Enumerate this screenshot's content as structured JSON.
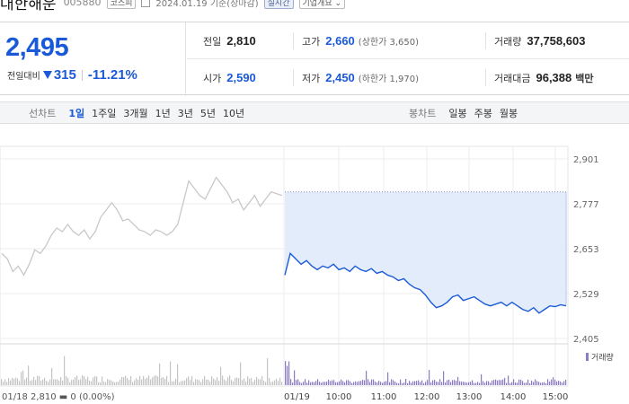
{
  "header": {
    "name": "대한해운",
    "code": "005880",
    "market_badge": "코스피",
    "timestamp": "2024.01.19 기준(장마감)",
    "live_badge": "실시간",
    "overview_button": "기업개요"
  },
  "quote": {
    "price": "2,495",
    "change_label": "전일대비",
    "change_value": "315",
    "change_direction": "down",
    "change_rate": "-11.21%",
    "prev_close_label": "전일",
    "prev_close": "2,810",
    "open_label": "시가",
    "open": "2,590",
    "high_label": "고가",
    "high": "2,660",
    "high_limit": "(상한가 3,650)",
    "low_label": "저가",
    "low": "2,450",
    "low_limit": "(하한가 1,970)",
    "volume_label": "거래량",
    "volume": "37,758,603",
    "amount_label": "거래대금",
    "amount": "96,388",
    "amount_unit": "백만"
  },
  "period_bar": {
    "line_title": "선차트",
    "line_options": [
      "1일",
      "1주일",
      "3개월",
      "1년",
      "3년",
      "5년",
      "10년"
    ],
    "active_line": "1일",
    "candle_title": "봉차트",
    "candle_options": [
      "일봉",
      "주봉",
      "월봉"
    ]
  },
  "colors": {
    "down": "#1a5ad8",
    "prev_day_line": "#c8c8c8",
    "fill": "#e3ecfa",
    "volume_today": "#8a7bc4",
    "volume_prev": "#c4c4c4"
  },
  "chart_data": {
    "type": "line",
    "y_ticks": [
      "2,901",
      "2,777",
      "2,653",
      "2,529",
      "2,405"
    ],
    "ylim": [
      2405,
      2901
    ],
    "x_ticks": [
      "01/19",
      "10:00",
      "11:00",
      "12:00",
      "13:00",
      "14:00",
      "15:00"
    ],
    "prev_day_caption": "01/18  2,810 ▬ 0 (0.00%)",
    "volume_legend": "거래량",
    "grid": true,
    "reference_line": 2810,
    "series": [
      {
        "values": [
          2640,
          2625,
          2590,
          2605,
          2580,
          2610,
          2650,
          2640,
          2660,
          2690,
          2710,
          2700,
          2720,
          2700,
          2690,
          2705,
          2680,
          2700,
          2740,
          2760,
          2780,
          2760,
          2730,
          2735,
          2720,
          2705,
          2700,
          2690,
          2705,
          2700,
          2690,
          2700,
          2720,
          2780,
          2840,
          2820,
          2800,
          2790,
          2820,
          2850,
          2830,
          2810,
          2780,
          2790,
          2760,
          2780,
          2800,
          2770,
          2790,
          2810,
          2805,
          2800
        ]
      },
      {
        "values": [
          2580,
          2640,
          2625,
          2610,
          2620,
          2605,
          2595,
          2605,
          2600,
          2610,
          2595,
          2600,
          2590,
          2605,
          2595,
          2590,
          2598,
          2585,
          2590,
          2580,
          2575,
          2565,
          2570,
          2555,
          2545,
          2540,
          2525,
          2505,
          2490,
          2495,
          2505,
          2520,
          2525,
          2510,
          2515,
          2520,
          2510,
          2500,
          2495,
          2500,
          2505,
          2495,
          2505,
          2495,
          2485,
          2480,
          2490,
          2475,
          2485,
          2495,
          2493,
          2498,
          2495
        ]
      }
    ]
  }
}
